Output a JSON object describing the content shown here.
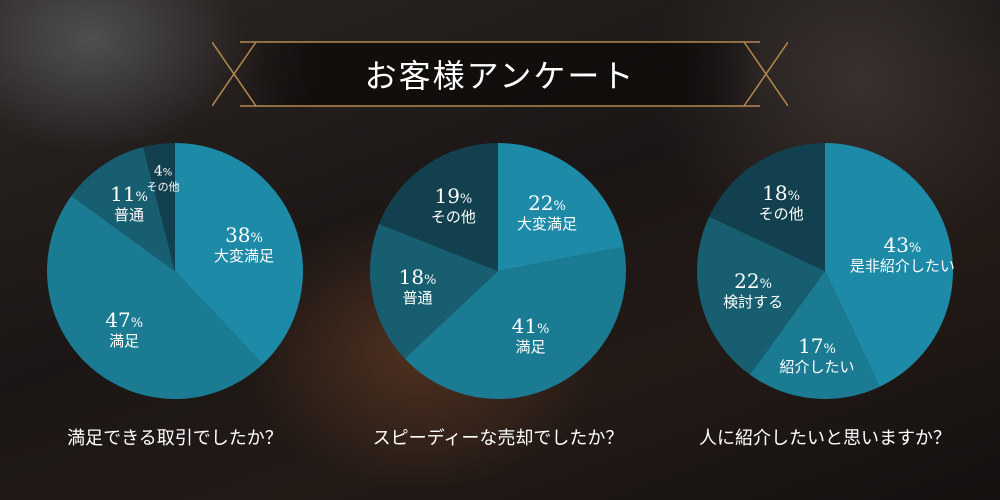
{
  "title": "お客様アンケート",
  "chart_data": [
    {
      "type": "pie",
      "question": "満足できる取引でしたか？",
      "slices": [
        {
          "label": "大変満足",
          "value": 38,
          "display": "38",
          "unit": "%",
          "color": "#1d8aa8"
        },
        {
          "label": "満足",
          "value": 47,
          "display": "47",
          "unit": "%",
          "color": "#1a7b93"
        },
        {
          "label": "普通",
          "value": 11,
          "display": "11",
          "unit": "%",
          "color": "#175e70"
        },
        {
          "label": "その他",
          "value": 4,
          "display": "4",
          "unit": "%",
          "color": "#12404e"
        }
      ]
    },
    {
      "type": "pie",
      "question": "スピーディーな売却でしたか？",
      "slices": [
        {
          "label": "大変満足",
          "value": 22,
          "display": "22",
          "unit": "%",
          "color": "#1d8aa8"
        },
        {
          "label": "満足",
          "value": 41,
          "display": "41",
          "unit": "%",
          "color": "#1a7b93"
        },
        {
          "label": "普通",
          "value": 18,
          "display": "18",
          "unit": "%",
          "color": "#175e70"
        },
        {
          "label": "その他",
          "value": 19,
          "display": "19",
          "unit": "%",
          "color": "#12404e"
        }
      ]
    },
    {
      "type": "pie",
      "question": "人に紹介したいと思いますか？",
      "slices": [
        {
          "label": "是非紹介したい",
          "value": 43,
          "display": "43",
          "unit": "%",
          "color": "#1d8aa8"
        },
        {
          "label": "紹介したい",
          "value": 17,
          "display": "17",
          "unit": "%",
          "color": "#1a7b93"
        },
        {
          "label": "検討する",
          "value": 22,
          "display": "22",
          "unit": "%",
          "color": "#175e70"
        },
        {
          "label": "その他",
          "value": 18,
          "display": "18",
          "unit": "%",
          "color": "#12404e"
        }
      ]
    }
  ]
}
